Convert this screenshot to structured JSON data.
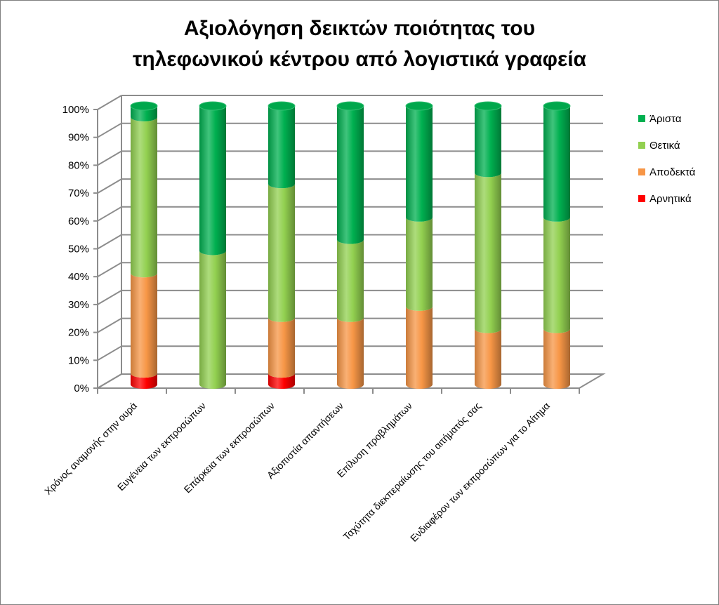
{
  "chart_data": {
    "type": "bar",
    "stacked": "percent",
    "style": "3d-cylinder",
    "title": "Αξιολόγηση δεικτών ποιότητας του τηλεφωνικού κέντρου από λογιστικά γραφεία",
    "title_lines": [
      "Αξιολόγηση δεικτών ποιότητας του",
      "τηλεφωνικού κέντρου από λογιστικά γραφεία"
    ],
    "categories": [
      "Χρόνος αναμονής στην ουρά",
      "Ευγένεια των εκπροσώπων",
      "Επάρκεια των εκπροσώπων",
      "Αξιοπιστία απαντήσεων",
      "Επίλυση προβλημάτων",
      "Ταχύτητα διεκπεραίωσης του αιτήματός σας",
      "Ενδιαφέρον των εκπροσώπων για το Αίτημα"
    ],
    "series": [
      {
        "name": "Αρνητικά",
        "color": "#ff0000",
        "values": [
          4,
          0,
          4,
          0,
          0,
          0,
          0
        ]
      },
      {
        "name": "Αποδεκτά",
        "color": "#f79646",
        "values": [
          36,
          0,
          20,
          24,
          28,
          20,
          20
        ]
      },
      {
        "name": "Θετικά",
        "color": "#92d050",
        "values": [
          56,
          48,
          48,
          28,
          32,
          56,
          40
        ]
      },
      {
        "name": "Άριστα",
        "color": "#00b050",
        "values": [
          4,
          52,
          28,
          48,
          40,
          24,
          40
        ]
      }
    ],
    "legend_order": [
      "Άριστα",
      "Θετικά",
      "Αποδεκτά",
      "Αρνητικά"
    ],
    "y_ticks": [
      "0%",
      "10%",
      "20%",
      "30%",
      "40%",
      "50%",
      "60%",
      "70%",
      "80%",
      "90%",
      "100%"
    ],
    "ylim": [
      0,
      100
    ],
    "grid": true,
    "legend_position": "right"
  }
}
